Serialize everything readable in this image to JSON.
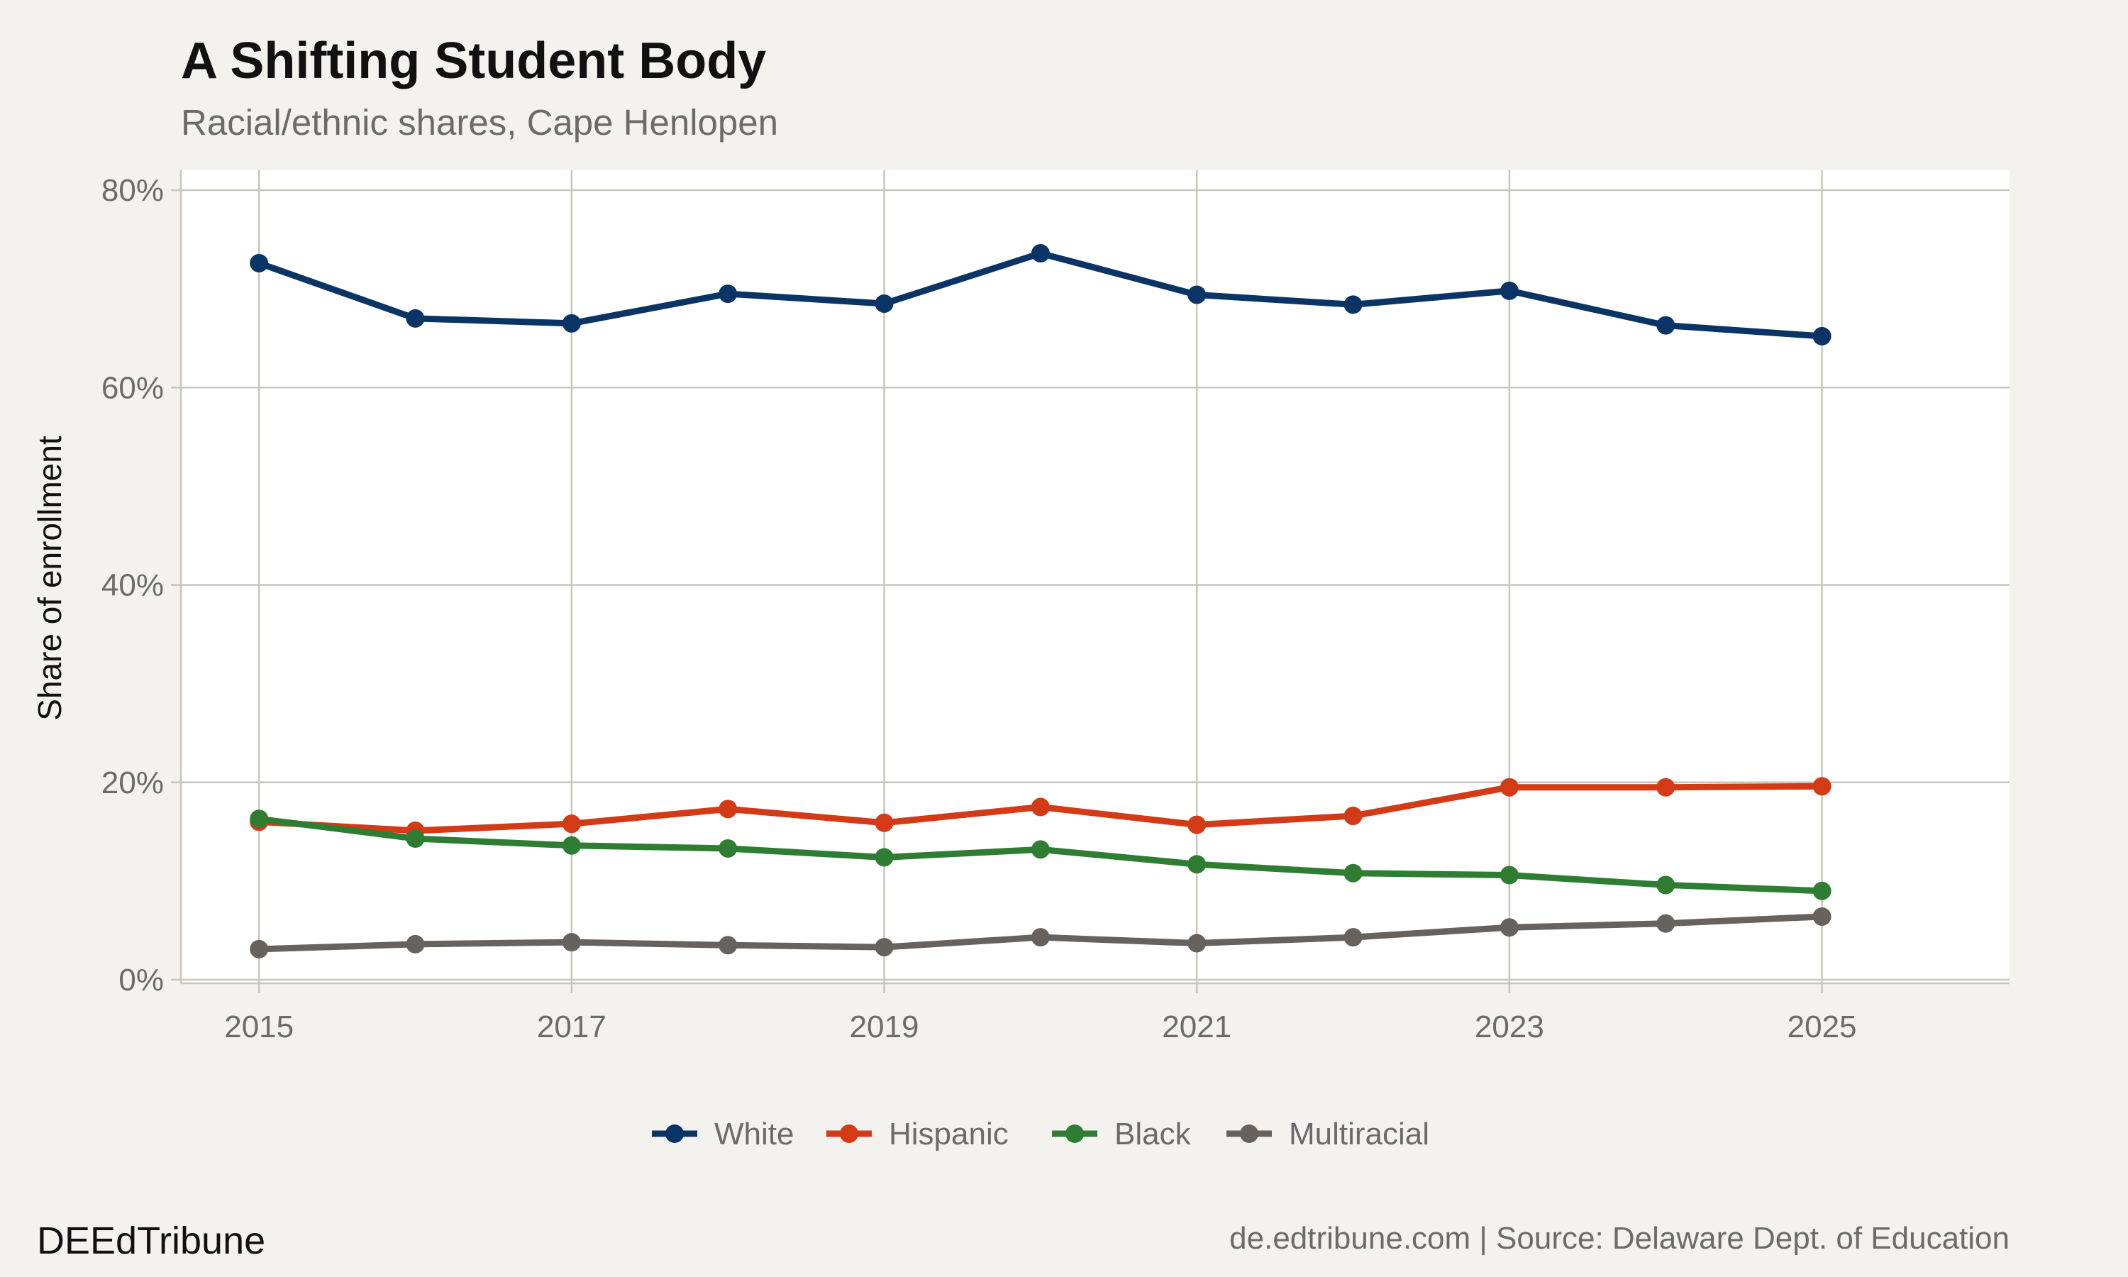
{
  "chart_data": {
    "type": "line",
    "title": "A Shifting Student Body",
    "subtitle": "Racial/ethnic shares, Cape Henlopen",
    "xlabel": "",
    "ylabel": "Share of enrollment",
    "x": [
      2015,
      2016,
      2017,
      2018,
      2019,
      2020,
      2021,
      2022,
      2023,
      2024,
      2025
    ],
    "xlim": [
      2014.5,
      2026.2
    ],
    "ylim": [
      0,
      80
    ],
    "x_ticks": [
      2015,
      2017,
      2019,
      2021,
      2023,
      2025
    ],
    "x_tick_labels": [
      "2015",
      "2017",
      "2019",
      "2021",
      "2023",
      "2025"
    ],
    "y_ticks": [
      0,
      20,
      40,
      60,
      80
    ],
    "y_tick_labels": [
      "0%",
      "20%",
      "40%",
      "60%",
      "80%"
    ],
    "grid": true,
    "legend_position": "bottom",
    "series": [
      {
        "name": "White",
        "color": "#0b3466",
        "values": [
          72.6,
          67.0,
          66.5,
          69.5,
          68.5,
          73.6,
          69.4,
          68.4,
          69.8,
          66.3,
          65.2
        ]
      },
      {
        "name": "Hispanic",
        "color": "#d33a16",
        "values": [
          16.0,
          15.1,
          15.8,
          17.3,
          15.9,
          17.5,
          15.7,
          16.6,
          19.5,
          19.5,
          19.6
        ]
      },
      {
        "name": "Black",
        "color": "#2f7d32",
        "values": [
          16.3,
          14.3,
          13.6,
          13.3,
          12.4,
          13.2,
          11.7,
          10.8,
          10.6,
          9.6,
          9.0
        ]
      },
      {
        "name": "Multiracial",
        "color": "#67625d",
        "values": [
          3.1,
          3.6,
          3.8,
          3.5,
          3.3,
          4.3,
          3.7,
          4.3,
          5.3,
          5.7,
          6.4
        ]
      }
    ]
  },
  "footer": {
    "brand": "DEEdTribune",
    "source": "de.edtribune.com | Source: Delaware Dept. of Education"
  }
}
